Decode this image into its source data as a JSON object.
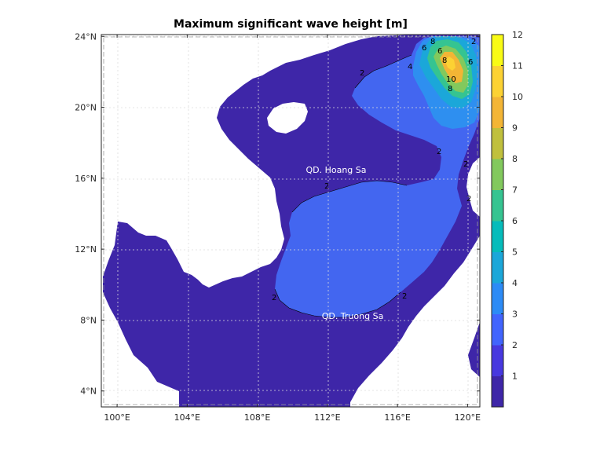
{
  "chart_data": {
    "type": "heatmap",
    "title": "Maximum significant wave height [m]",
    "xlabel": "",
    "ylabel": "",
    "x_ticks": [
      "100°E",
      "104°E",
      "108°E",
      "112°E",
      "116°E",
      "120°E"
    ],
    "x_tick_values": [
      100,
      104,
      108,
      112,
      116,
      120
    ],
    "y_ticks": [
      "24°N",
      "20°N",
      "16°N",
      "12°N",
      "8°N",
      "4°N"
    ],
    "y_tick_values": [
      24,
      20,
      16,
      12,
      8,
      4
    ],
    "xlim": [
      99.1,
      120.7
    ],
    "ylim": [
      3.1,
      24.1
    ],
    "grid": true,
    "colorbar": {
      "label": "",
      "ticks": [
        "1",
        "2",
        "3",
        "4",
        "5",
        "6",
        "7",
        "8",
        "9",
        "10",
        "11",
        "12"
      ],
      "tick_values": [
        1,
        2,
        3,
        4,
        5,
        6,
        7,
        8,
        9,
        10,
        11,
        12
      ],
      "range": [
        0,
        12
      ],
      "colormap": "parula",
      "colors": [
        "#3e26a8",
        "#4738df",
        "#4164fd",
        "#2c8bf6",
        "#1ba7d9",
        "#06bcbb",
        "#35c491",
        "#82c95d",
        "#c0c03d",
        "#f3b535",
        "#fcd233",
        "#f9fb15"
      ]
    },
    "annotations": [
      "QD. Hoang Sa",
      "QD. Truong Sa"
    ],
    "contour_labels": [
      "2",
      "2",
      "2",
      "2",
      "2",
      "2",
      "2",
      "2",
      "4",
      "6",
      "6",
      "6",
      "8",
      "8",
      "10",
      "8"
    ],
    "peak_value_approx": 11.5,
    "peak_location": "NE corner near 119°E, 22.5°N"
  },
  "colors": {
    "land": "#ffffff",
    "sea_low": "#3e26a8",
    "sea_2_3": "#4366f0",
    "sea_3_4": "#2e8ff0",
    "axis": "#262626",
    "grid": "#dcdcdc"
  }
}
